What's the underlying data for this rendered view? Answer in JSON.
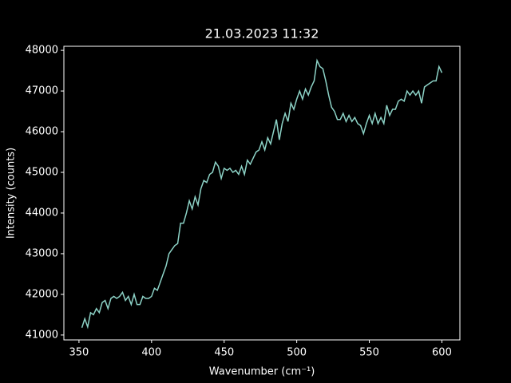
{
  "chart_data": {
    "type": "line",
    "title": "21.03.2023 11:32",
    "x_label": "Wavenumber (cm⁻¹)",
    "y_label": "Intensity (counts)",
    "x": [
      352,
      354,
      356,
      358,
      360,
      362,
      364,
      366,
      368,
      370,
      372,
      374,
      376,
      378,
      380,
      382,
      384,
      386,
      388,
      390,
      392,
      394,
      396,
      398,
      400,
      402,
      404,
      406,
      408,
      410,
      412,
      414,
      416,
      418,
      420,
      422,
      424,
      426,
      428,
      430,
      432,
      434,
      436,
      438,
      440,
      442,
      444,
      446,
      448,
      450,
      452,
      454,
      456,
      458,
      460,
      462,
      464,
      466,
      468,
      470,
      472,
      474,
      476,
      478,
      480,
      482,
      484,
      486,
      488,
      490,
      492,
      494,
      496,
      498,
      500,
      502,
      504,
      506,
      508,
      510,
      512,
      514,
      516,
      518,
      520,
      522,
      524,
      526,
      528,
      530,
      532,
      534,
      536,
      538,
      540,
      542,
      544,
      546,
      548,
      550,
      552,
      554,
      556,
      558,
      560,
      562,
      564,
      566,
      568,
      570,
      572,
      574,
      576,
      578,
      580,
      582,
      584,
      586,
      588,
      590,
      592,
      594,
      596,
      598,
      600
    ],
    "series": [
      {
        "name": "Intensity",
        "color": "#8dd3c7",
        "values": [
          41180,
          41400,
          41200,
          41550,
          41500,
          41650,
          41550,
          41800,
          41850,
          41650,
          41900,
          41950,
          41900,
          41950,
          42050,
          41850,
          41950,
          41750,
          42000,
          41750,
          41750,
          41950,
          41900,
          41900,
          41950,
          42150,
          42100,
          42300,
          42500,
          42700,
          43000,
          43100,
          43200,
          43250,
          43750,
          43750,
          44000,
          44300,
          44100,
          44400,
          44200,
          44600,
          44800,
          44750,
          44950,
          45000,
          45250,
          45150,
          44850,
          45100,
          45050,
          45100,
          45000,
          45050,
          44950,
          45150,
          44950,
          45300,
          45200,
          45350,
          45500,
          45550,
          45750,
          45550,
          45850,
          45700,
          46000,
          46300,
          45800,
          46200,
          46450,
          46250,
          46700,
          46550,
          46800,
          47000,
          46800,
          47050,
          46900,
          47100,
          47250,
          47750,
          47600,
          47550,
          47250,
          46900,
          46600,
          46500,
          46300,
          46300,
          46450,
          46250,
          46400,
          46250,
          46350,
          46200,
          46150,
          45950,
          46200,
          46400,
          46200,
          46450,
          46200,
          46350,
          46200,
          46650,
          46400,
          46550,
          46550,
          46750,
          46800,
          46750,
          47000,
          46900,
          47000,
          46900,
          47000,
          46700,
          47100,
          47150,
          47200,
          47250,
          47250,
          47600,
          47450
        ]
      }
    ],
    "xlim": [
      339.6,
      612.4
    ],
    "ylim": [
      40880,
      48100
    ],
    "xticks": [
      350,
      400,
      450,
      500,
      550,
      600
    ],
    "yticks": [
      41000,
      42000,
      43000,
      44000,
      45000,
      46000,
      47000,
      48000
    ]
  }
}
